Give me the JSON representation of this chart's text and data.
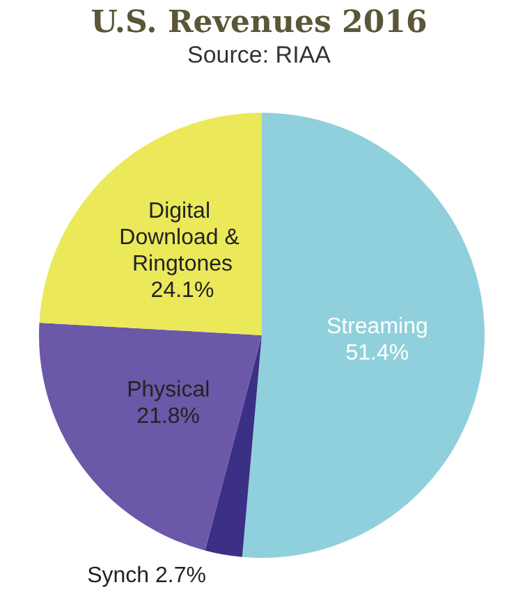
{
  "chart_data": {
    "type": "pie",
    "title": "U.S. Revenues 2016",
    "annotations": [
      "Source: RIAA"
    ],
    "categories": [
      "Streaming",
      "Synch",
      "Physical",
      "Digital Download & Ringtones"
    ],
    "values": [
      51.4,
      2.7,
      21.8,
      24.1
    ],
    "value_labels": [
      "51.4%",
      "2.7%",
      "21.8%",
      "24.1%"
    ],
    "colors": [
      "#8fd0dc",
      "#3b2f86",
      "#6b58a8",
      "#ebe95a"
    ],
    "legend": false
  }
}
